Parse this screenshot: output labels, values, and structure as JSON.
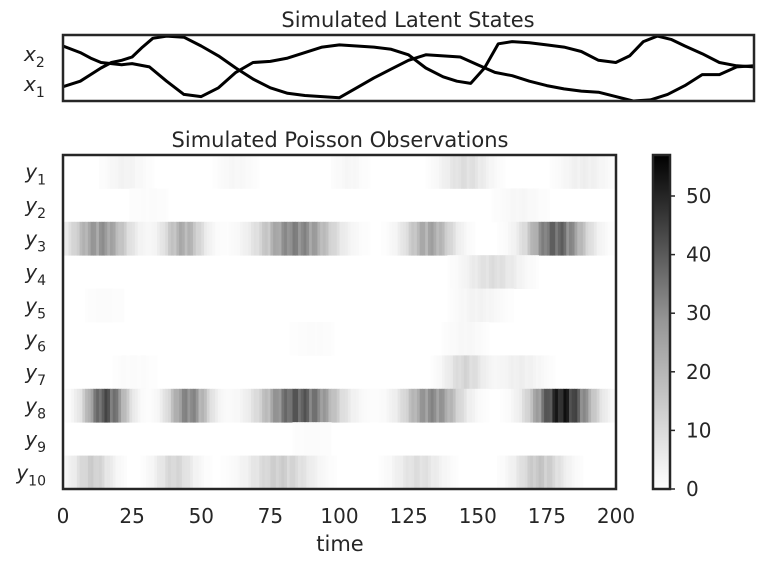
{
  "chart_data": [
    {
      "type": "line",
      "title": "Simulated Latent States",
      "xlabel": "",
      "ylabel": "",
      "xlim": [
        0,
        200
      ],
      "grid": false,
      "ytick_labels": [
        {
          "base": "x",
          "sub": "2"
        },
        {
          "base": "x",
          "sub": "1"
        }
      ],
      "line_color": "#000000",
      "series": [
        {
          "name": "x₂",
          "x": [
            0,
            5,
            8,
            11,
            14,
            17,
            20,
            25,
            30,
            35,
            40,
            45,
            50,
            55,
            60,
            65,
            70,
            75,
            80,
            85,
            90,
            95,
            100,
            105,
            110,
            114,
            118,
            122,
            126,
            130,
            135,
            140,
            145,
            150,
            155,
            160,
            164,
            168,
            172,
            176,
            180,
            185,
            190,
            195,
            200
          ],
          "y": [
            1.0,
            0.7,
            0.45,
            0.25,
            0.2,
            0.15,
            0.2,
            0.05,
            -0.6,
            -1.2,
            -1.3,
            -0.9,
            -0.2,
            0.25,
            0.3,
            0.45,
            0.7,
            0.95,
            1.05,
            1.0,
            0.95,
            0.85,
            0.6,
            0.0,
            -0.4,
            -0.6,
            -0.7,
            0.0,
            1.1,
            1.2,
            1.15,
            1.05,
            0.95,
            0.75,
            0.35,
            0.25,
            0.55,
            1.2,
            1.45,
            1.3,
            1.0,
            0.65,
            0.25,
            0.1,
            0.05
          ]
        },
        {
          "name": "x₁",
          "x": [
            0,
            5,
            8,
            11,
            14,
            17,
            20,
            23,
            26,
            30,
            35,
            40,
            45,
            50,
            55,
            60,
            65,
            70,
            75,
            80,
            85,
            90,
            95,
            100,
            105,
            110,
            115,
            120,
            125,
            130,
            135,
            140,
            145,
            150,
            155,
            160,
            165,
            170,
            175,
            180,
            185,
            190,
            195,
            200
          ],
          "y": [
            -0.85,
            -0.6,
            -0.3,
            0.0,
            0.25,
            0.35,
            0.5,
            0.95,
            1.35,
            1.45,
            1.4,
            1.0,
            0.55,
            0.0,
            -0.5,
            -0.9,
            -1.15,
            -1.25,
            -1.3,
            -1.35,
            -0.9,
            -0.45,
            -0.05,
            0.35,
            0.6,
            0.55,
            0.5,
            0.15,
            -0.2,
            -0.35,
            -0.6,
            -0.8,
            -0.95,
            -1.05,
            -1.1,
            -1.3,
            -1.5,
            -1.45,
            -1.2,
            -0.8,
            -0.3,
            -0.3,
            0.05,
            0.1
          ]
        }
      ]
    },
    {
      "type": "heatmap",
      "title": "Simulated Poisson Observations",
      "xlabel": "time",
      "ylabel": "",
      "xlim": [
        0,
        200
      ],
      "x_ticks": [
        0,
        25,
        50,
        75,
        100,
        125,
        150,
        175,
        200
      ],
      "grid": false,
      "y_rows": [
        {
          "base": "y",
          "sub": "1"
        },
        {
          "base": "y",
          "sub": "2"
        },
        {
          "base": "y",
          "sub": "3"
        },
        {
          "base": "y",
          "sub": "4"
        },
        {
          "base": "y",
          "sub": "5"
        },
        {
          "base": "y",
          "sub": "6"
        },
        {
          "base": "y",
          "sub": "7"
        },
        {
          "base": "y",
          "sub": "8"
        },
        {
          "base": "y",
          "sub": "9"
        },
        {
          "base": "y",
          "sub": "10"
        }
      ],
      "colormap": "Greys",
      "colorbar": {
        "min": 0,
        "max": 57,
        "ticks": [
          0,
          10,
          20,
          30,
          40,
          50
        ]
      },
      "bursts": [
        {
          "row": 0,
          "center": 22,
          "width": 5,
          "peak": 3
        },
        {
          "row": 0,
          "center": 62,
          "width": 5,
          "peak": 2
        },
        {
          "row": 0,
          "center": 103,
          "width": 4,
          "peak": 2
        },
        {
          "row": 0,
          "center": 145,
          "width": 6,
          "peak": 8
        },
        {
          "row": 0,
          "center": 188,
          "width": 6,
          "peak": 4
        },
        {
          "row": 1,
          "center": 30,
          "width": 6,
          "peak": 1
        },
        {
          "row": 1,
          "center": 165,
          "width": 6,
          "peak": 2
        },
        {
          "row": 2,
          "center": 13,
          "width": 7,
          "peak": 26
        },
        {
          "row": 2,
          "center": 43,
          "width": 5,
          "peak": 20
        },
        {
          "row": 2,
          "center": 84,
          "width": 9,
          "peak": 30
        },
        {
          "row": 2,
          "center": 132,
          "width": 6,
          "peak": 22
        },
        {
          "row": 2,
          "center": 178,
          "width": 7,
          "peak": 38
        },
        {
          "row": 3,
          "center": 155,
          "width": 7,
          "peak": 8
        },
        {
          "row": 4,
          "center": 15,
          "width": 6,
          "peak": 1
        },
        {
          "row": 4,
          "center": 150,
          "width": 6,
          "peak": 3
        },
        {
          "row": 5,
          "center": 90,
          "width": 6,
          "peak": 1
        },
        {
          "row": 5,
          "center": 145,
          "width": 5,
          "peak": 2
        },
        {
          "row": 6,
          "center": 25,
          "width": 6,
          "peak": 1
        },
        {
          "row": 6,
          "center": 145,
          "width": 5,
          "peak": 10
        },
        {
          "row": 6,
          "center": 165,
          "width": 6,
          "peak": 4
        },
        {
          "row": 7,
          "center": 15,
          "width": 5,
          "peak": 42
        },
        {
          "row": 7,
          "center": 45,
          "width": 5,
          "peak": 30
        },
        {
          "row": 7,
          "center": 85,
          "width": 9,
          "peak": 40
        },
        {
          "row": 7,
          "center": 133,
          "width": 7,
          "peak": 28
        },
        {
          "row": 7,
          "center": 180,
          "width": 7,
          "peak": 55
        },
        {
          "row": 8,
          "center": 90,
          "width": 6,
          "peak": 1
        },
        {
          "row": 9,
          "center": 10,
          "width": 5,
          "peak": 12
        },
        {
          "row": 9,
          "center": 40,
          "width": 5,
          "peak": 10
        },
        {
          "row": 9,
          "center": 78,
          "width": 8,
          "peak": 12
        },
        {
          "row": 9,
          "center": 128,
          "width": 6,
          "peak": 8
        },
        {
          "row": 9,
          "center": 172,
          "width": 6,
          "peak": 14
        }
      ]
    }
  ]
}
